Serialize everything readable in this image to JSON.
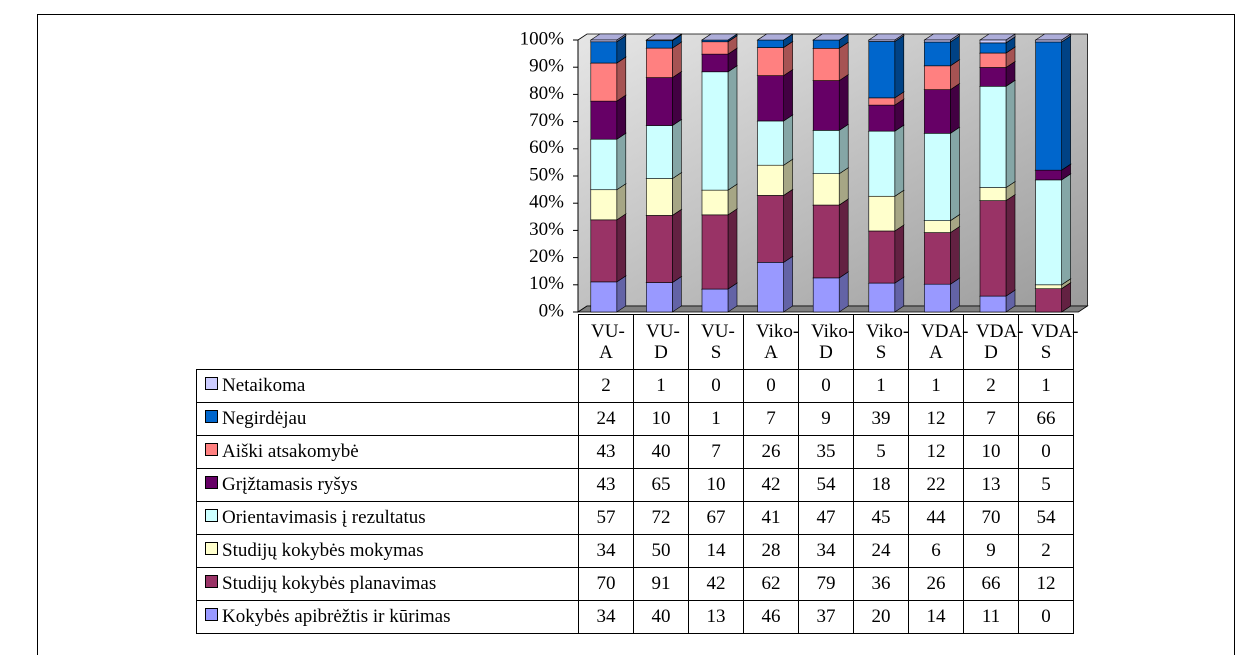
{
  "chart_data": {
    "type": "bar",
    "stack": "percent",
    "three_d": true,
    "categories": [
      "VU-A",
      "VU-D",
      "VU-S",
      "Viko-A",
      "Viko-D",
      "Viko-S",
      "VDA-A",
      "VDA-D",
      "VDA-S"
    ],
    "series": [
      {
        "name": "Netaikoma",
        "color": "#ccccff",
        "values": [
          2,
          1,
          0,
          0,
          0,
          1,
          1,
          2,
          1
        ]
      },
      {
        "name": "Negirdėjau",
        "color": "#0066cc",
        "values": [
          24,
          10,
          1,
          7,
          9,
          39,
          12,
          7,
          66
        ]
      },
      {
        "name": "Aiški atsakomybė",
        "color": "#ff8080",
        "values": [
          43,
          40,
          7,
          26,
          35,
          5,
          12,
          10,
          0
        ]
      },
      {
        "name": "Grįžtamasis ryšys",
        "color": "#660066",
        "values": [
          43,
          65,
          10,
          42,
          54,
          18,
          22,
          13,
          5
        ]
      },
      {
        "name": "Orientavimasis į rezultatus",
        "color": "#ccffff",
        "values": [
          57,
          72,
          67,
          41,
          47,
          45,
          44,
          70,
          54
        ]
      },
      {
        "name": "Studijų kokybės mokymas",
        "color": "#ffffcc",
        "values": [
          34,
          50,
          14,
          28,
          34,
          24,
          6,
          9,
          2
        ]
      },
      {
        "name": "Studijų kokybės planavimas",
        "color": "#993366",
        "values": [
          70,
          91,
          42,
          62,
          79,
          36,
          26,
          66,
          12
        ]
      },
      {
        "name": "Kokybės apibrėžtis ir kūrimas",
        "color": "#9999ff",
        "values": [
          34,
          40,
          13,
          46,
          37,
          20,
          14,
          11,
          0
        ]
      }
    ],
    "ylim": [
      0,
      100
    ],
    "yticks": [
      {
        "value": 0,
        "label": "0%"
      },
      {
        "value": 10,
        "label": "10%"
      },
      {
        "value": 20,
        "label": "20%"
      },
      {
        "value": 30,
        "label": "30%"
      },
      {
        "value": 40,
        "label": "40%"
      },
      {
        "value": 50,
        "label": "50%"
      },
      {
        "value": 60,
        "label": "60%"
      },
      {
        "value": 70,
        "label": "70%"
      },
      {
        "value": 80,
        "label": "80%"
      },
      {
        "value": 90,
        "label": "90%"
      },
      {
        "value": 100,
        "label": "100%"
      }
    ],
    "legend": "table"
  }
}
